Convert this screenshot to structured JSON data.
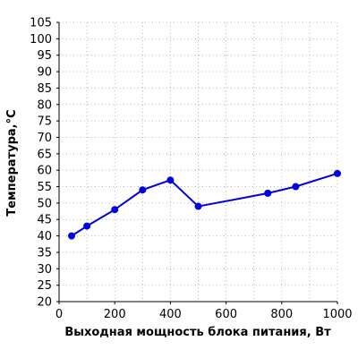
{
  "chart_data": {
    "type": "line",
    "title": "",
    "xlabel": "Выходная мощность блока питания, Вт",
    "ylabel": "Температура,°C",
    "xlim": [
      0,
      1000
    ],
    "ylim": [
      20,
      105
    ],
    "xticks": [
      0,
      200,
      400,
      600,
      800,
      1000
    ],
    "yticks": [
      20,
      25,
      30,
      35,
      40,
      45,
      50,
      55,
      60,
      65,
      70,
      75,
      80,
      85,
      90,
      95,
      100,
      105
    ],
    "xtick_labels": [
      "0",
      "200",
      "400",
      "600",
      "800",
      "1000"
    ],
    "ytick_labels": [
      "20",
      "25",
      "30",
      "35",
      "40",
      "45",
      "50",
      "55",
      "60",
      "65",
      "70",
      "75",
      "80",
      "85",
      "90",
      "95",
      "100",
      "105"
    ],
    "grid": true,
    "legend": "none",
    "series": [
      {
        "color": "#0000e0",
        "x": [
          45,
          100,
          200,
          300,
          400,
          500,
          750,
          850,
          1000
        ],
        "y": [
          40,
          43,
          48,
          54,
          57,
          49,
          53,
          55,
          59
        ]
      }
    ]
  }
}
